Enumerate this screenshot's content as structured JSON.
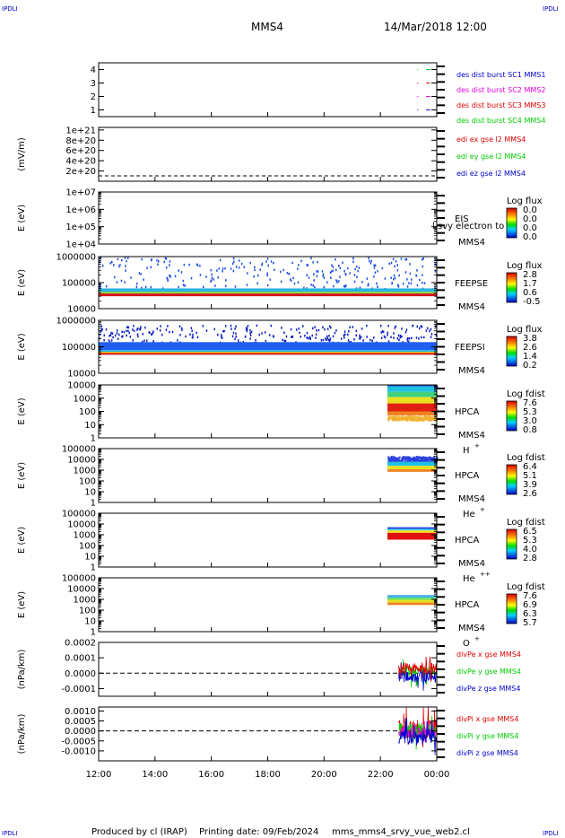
{
  "header": {
    "corner_tl": "IPDLI",
    "corner_tr": "IPDLI",
    "corner_bl": "IPDLI",
    "corner_br": "IPDLI",
    "title": "MMS4",
    "date": "14/Mar/2018 12:00"
  },
  "footer": {
    "produced": "Produced by cl (IRAP)",
    "printing": "Printing date: 09/Feb/2024",
    "file": "mms_mms4_srvy_vue_web2.cl"
  },
  "colors": {
    "black": "#000000",
    "red": "#dd0000",
    "green": "#00cc00",
    "blue": "#0000cc",
    "magenta": "#dd00dd"
  },
  "chart_data": [
    {
      "type": "scatter",
      "id": "burst",
      "ylim": [
        0.5,
        4.5
      ],
      "yticks": [
        "1",
        "2",
        "3",
        "4"
      ],
      "legend": [
        {
          "label": "des dist burst SC1 MMS1",
          "color": "#0000cc"
        },
        {
          "label": "des dist burst SC2 MMS2",
          "color": "#dd00dd"
        },
        {
          "label": "des dist burst SC3 MMS3",
          "color": "#dd0000"
        },
        {
          "label": "des dist burst SC4 MMS4",
          "color": "#00cc00"
        }
      ],
      "series": [
        {
          "y": 4,
          "color": "#00cc00",
          "x": [
            23.5,
            23.7
          ]
        },
        {
          "y": 3,
          "color": "#dd0000",
          "x": [
            23.5,
            23.7
          ]
        },
        {
          "y": 2,
          "color": "#dd00dd",
          "x": [
            23.5,
            23.7
          ]
        },
        {
          "y": 1,
          "color": "#0000cc",
          "x": [
            23.5,
            23.7
          ]
        }
      ]
    },
    {
      "type": "line",
      "id": "edi",
      "ylabel": "(mV/m)",
      "ylim": [
        0,
        1.05e+21
      ],
      "yticks": [
        "2e+20",
        "4e+20",
        "6e+20",
        "8e+20",
        "1e+21"
      ],
      "legend": [
        {
          "label": "edi ex gse l2 MMS4",
          "color": "#dd0000"
        },
        {
          "label": "edi ey gse l2 MMS4",
          "color": "#00cc00"
        },
        {
          "label": "edi ez gse l2 MMS4",
          "color": "#0000cc"
        }
      ]
    },
    {
      "type": "heatmap",
      "id": "eis",
      "ylabel": "E (eV)",
      "scale": "log",
      "ylim": [
        10000,
        10000000
      ],
      "yticks": [
        "1e+04",
        "1e+05",
        "1e+06",
        "1e+07"
      ],
      "label": "EIS",
      "sc": "MMS4",
      "overlay": "l svy electron to",
      "cbar_title": "Log flux",
      "cbar_ticks": [
        "0.0",
        "0.0",
        "0.0",
        "0.0"
      ]
    },
    {
      "type": "heatmap",
      "id": "feepse",
      "ylabel": "E (eV)",
      "scale": "log",
      "ylim": [
        10000,
        1000000
      ],
      "yticks": [
        "10000",
        "100000",
        "1000000"
      ],
      "label": "FEEPSE",
      "sc": "MMS4",
      "cbar_title": "Log flux",
      "cbar_ticks": [
        "2.8",
        "1.7",
        "0.6",
        "-0.5"
      ],
      "x_range": [
        12,
        24
      ],
      "bands": [
        {
          "e_top": 1000000,
          "e_bot": 60000,
          "color": "#1f4fe8",
          "sparse": true
        },
        {
          "e_top": 60000,
          "e_bot": 45000,
          "color": "#28b3e0"
        },
        {
          "e_top": 45000,
          "e_bot": 38000,
          "color": "#8cd14a"
        },
        {
          "e_top": 38000,
          "e_bot": 30000,
          "color": "#d21010"
        }
      ]
    },
    {
      "type": "heatmap",
      "id": "feepsi",
      "ylabel": "E (eV)",
      "scale": "log",
      "ylim": [
        10000,
        1000000
      ],
      "yticks": [
        "10000",
        "100000",
        "1000000"
      ],
      "label": "FEEPSI",
      "sc": "MMS4",
      "cbar_title": "Log flux",
      "cbar_ticks": [
        "3.8",
        "2.6",
        "1.4",
        "0.2"
      ],
      "x_range": [
        12,
        24
      ],
      "bands": [
        {
          "e_top": 700000,
          "e_bot": 150000,
          "color": "#0a1fc8",
          "sparse": true
        },
        {
          "e_top": 150000,
          "e_bot": 75000,
          "color": "#2060f0"
        },
        {
          "e_top": 75000,
          "e_bot": 65000,
          "color": "#20b0e0"
        },
        {
          "e_top": 65000,
          "e_bot": 58000,
          "color": "#e8d020"
        },
        {
          "e_top": 58000,
          "e_bot": 50000,
          "color": "#d21010"
        }
      ]
    },
    {
      "type": "heatmap",
      "id": "hpca_h",
      "ylabel": "E (eV)",
      "scale": "log",
      "ylim": [
        1,
        10000
      ],
      "yticks": [
        "1",
        "10",
        "100",
        "1000",
        "10000"
      ],
      "label": "HPCA",
      "sc": "MMS4",
      "species": "H",
      "species_sup": "+",
      "cbar_title": "Log fdist",
      "cbar_ticks": [
        "7.6",
        "5.3",
        "3.0",
        "0.8"
      ],
      "x_range": [
        22.25,
        24
      ],
      "bands": [
        {
          "e_top": 40000,
          "e_bot": 8000,
          "color": "#2a40e0",
          "sparse": true
        },
        {
          "e_top": 8000,
          "e_bot": 3000,
          "color": "#20c0e0"
        },
        {
          "e_top": 3000,
          "e_bot": 1200,
          "color": "#40d080"
        },
        {
          "e_top": 1200,
          "e_bot": 400,
          "color": "#e8e020"
        },
        {
          "e_top": 400,
          "e_bot": 100,
          "color": "#e02010"
        },
        {
          "e_top": 100,
          "e_bot": 50,
          "color": "#f08020"
        },
        {
          "e_top": 50,
          "e_bot": 25,
          "color": "#f0b030",
          "sparse": true
        }
      ]
    },
    {
      "type": "heatmap",
      "id": "hpca_he",
      "ylabel": "E (eV)",
      "scale": "log",
      "ylim": [
        1,
        100000
      ],
      "yticks": [
        "1",
        "10",
        "100",
        "1000",
        "10000",
        "100000"
      ],
      "label": "HPCA",
      "sc": "MMS4",
      "species": "He",
      "species_sup": "+",
      "cbar_title": "Log fdist",
      "cbar_ticks": [
        "6.4",
        "5.1",
        "3.9",
        "2.6"
      ],
      "x_range": [
        22.25,
        24
      ],
      "bands": [
        {
          "e_top": 22000,
          "e_bot": 6000,
          "color": "#2a40e0",
          "sparse": true
        },
        {
          "e_top": 6000,
          "e_bot": 2500,
          "color": "#20c0e0"
        },
        {
          "e_top": 2500,
          "e_bot": 1200,
          "color": "#e8e020"
        },
        {
          "e_top": 1200,
          "e_bot": 700,
          "color": "#f08020"
        }
      ]
    },
    {
      "type": "heatmap",
      "id": "hpca_hepp",
      "ylabel": "E (eV)",
      "scale": "log",
      "ylim": [
        1,
        100000
      ],
      "yticks": [
        "1",
        "10",
        "100",
        "1000",
        "10000",
        "100000"
      ],
      "label": "HPCA",
      "sc": "MMS4",
      "species": "He",
      "species_sup": "++",
      "cbar_title": "Log fdist",
      "cbar_ticks": [
        "6.5",
        "5.3",
        "4.0",
        "2.8"
      ],
      "x_range": [
        22.25,
        24
      ],
      "bands": [
        {
          "e_top": 5000,
          "e_bot": 3500,
          "color": "#2040e0"
        },
        {
          "e_top": 3500,
          "e_bot": 2500,
          "color": "#40d0e0"
        },
        {
          "e_top": 2500,
          "e_bot": 1500,
          "color": "#f0e020"
        },
        {
          "e_top": 1500,
          "e_bot": 350,
          "color": "#e01010"
        }
      ]
    },
    {
      "type": "heatmap",
      "id": "hpca_o",
      "ylabel": "E (eV)",
      "scale": "log",
      "ylim": [
        1,
        100000
      ],
      "yticks": [
        "1",
        "10",
        "100",
        "1000",
        "10000",
        "100000"
      ],
      "label": "HPCA",
      "sc": "MMS4",
      "species": "O",
      "species_sup": "+",
      "cbar_title": "Log fdist",
      "cbar_ticks": [
        "7.6",
        "6.9",
        "6.3",
        "5.7"
      ],
      "x_range": [
        22.25,
        24
      ],
      "bands": [
        {
          "e_top": 2500,
          "e_bot": 1400,
          "color": "#40b0e0"
        },
        {
          "e_top": 1400,
          "e_bot": 900,
          "color": "#60e060"
        },
        {
          "e_top": 900,
          "e_bot": 500,
          "color": "#e8e020"
        },
        {
          "e_top": 500,
          "e_bot": 300,
          "color": "#f08020"
        }
      ]
    },
    {
      "type": "line",
      "id": "divpe",
      "ylabel": "(nPa/km)",
      "ylim": [
        -0.00015,
        0.0002
      ],
      "yticks": [
        "-0.0001",
        "0.0000",
        "0.0001",
        "0.0002"
      ],
      "tick_values": [
        -0.0001,
        0,
        0.0001,
        0.0002
      ],
      "zero_line": true,
      "x_range": [
        22.65,
        24
      ],
      "legend": [
        {
          "label": "divPe x gse MMS4",
          "color": "#dd0000"
        },
        {
          "label": "divPe y gse MMS4",
          "color": "#00cc00"
        },
        {
          "label": "divPe z gse MMS4",
          "color": "#0000cc"
        }
      ],
      "series": [
        {
          "color": "#00cc00",
          "center": 5e-06,
          "amp": 4e-05
        },
        {
          "color": "#0000cc",
          "center": -2e-05,
          "amp": 4e-05
        },
        {
          "color": "#dd0000",
          "center": 3e-05,
          "amp": 4e-05
        }
      ]
    },
    {
      "type": "line",
      "id": "divpi",
      "ylabel": "(nPa/km)",
      "ylim": [
        -0.0015,
        0.0012
      ],
      "yticks": [
        "-0.0010",
        "-0.0005",
        "0.0000",
        "0.0005",
        "0.0010"
      ],
      "tick_values": [
        -0.001,
        -0.0005,
        0,
        0.0005,
        0.001
      ],
      "zero_line": true,
      "x_range": [
        22.65,
        24
      ],
      "legend": [
        {
          "label": "divPi x gse MMS4",
          "color": "#dd0000"
        },
        {
          "label": "divPi y gse MMS4",
          "color": "#00cc00"
        },
        {
          "label": "divPi z gse MMS4",
          "color": "#0000cc"
        }
      ],
      "series": [
        {
          "color": "#dd0000",
          "center": 0.0001,
          "amp": 0.0005
        },
        {
          "color": "#00cc00",
          "center": 0.0,
          "amp": 0.0004
        },
        {
          "color": "#dd00dd",
          "center": -0.0001,
          "amp": 0.0003
        },
        {
          "color": "#0000cc",
          "center": -0.0003,
          "amp": 0.0004
        }
      ]
    }
  ],
  "xaxis": {
    "range": [
      12,
      24
    ],
    "ticks": [
      12,
      14,
      16,
      18,
      20,
      22,
      24
    ],
    "labels": [
      "12:00",
      "14:00",
      "16:00",
      "18:00",
      "20:00",
      "22:00",
      "00:00"
    ]
  }
}
